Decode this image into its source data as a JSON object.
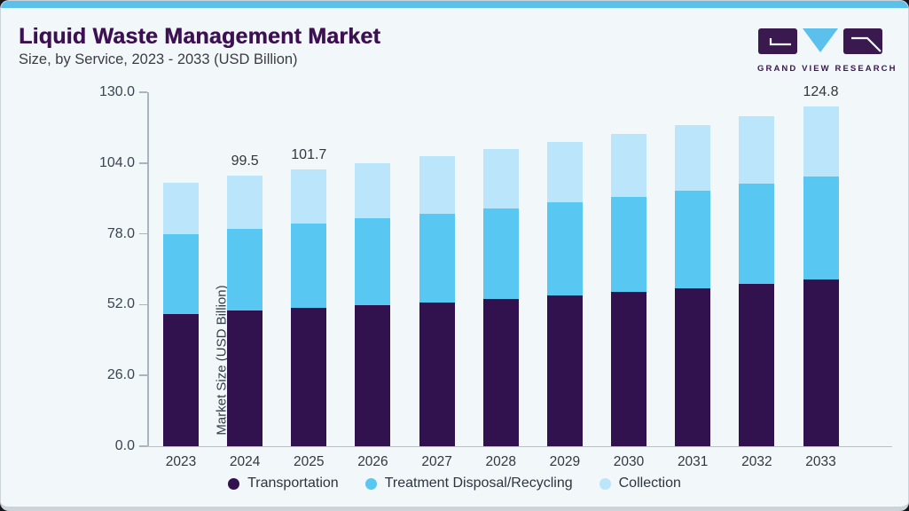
{
  "header": {
    "title": "Liquid Waste Management Market",
    "subtitle": "Size, by Service, 2023 - 2033 (USD Billion)"
  },
  "logo": {
    "text": "GRAND VIEW RESEARCH",
    "purple": "#39194e",
    "blue": "#5bc0ec"
  },
  "theme": {
    "accent_strip": "#5bc0ec",
    "card_background": "#f2f7fa",
    "title_color": "#3c1053",
    "axis_color": "#a9b4be"
  },
  "chart_data": {
    "type": "bar",
    "stacked": true,
    "title": "Liquid Waste Management Market Size, by Service, 2023 - 2033 (USD Billion)",
    "xlabel": "",
    "ylabel": "Market Size (USD Billion)",
    "ylim": [
      0,
      130
    ],
    "yticks": [
      0.0,
      26.0,
      52.0,
      78.0,
      104.0,
      130.0
    ],
    "grid": false,
    "legend_position": "bottom",
    "categories": [
      "2023",
      "2024",
      "2025",
      "2026",
      "2027",
      "2028",
      "2029",
      "2030",
      "2031",
      "2032",
      "2033"
    ],
    "series": [
      {
        "name": "Transportation",
        "color": "#32124e",
        "values": [
          48.6,
          49.8,
          50.8,
          51.8,
          52.8,
          54.0,
          55.3,
          56.7,
          58.1,
          59.6,
          61.1
        ]
      },
      {
        "name": "Treatment Disposal/Recycling",
        "color": "#58c7f2",
        "values": [
          29.4,
          30.1,
          31.1,
          31.9,
          32.6,
          33.4,
          34.2,
          35.0,
          35.9,
          36.8,
          37.8
        ]
      },
      {
        "name": "Collection",
        "color": "#bae5fa",
        "values": [
          18.8,
          19.6,
          19.8,
          20.4,
          21.0,
          21.7,
          22.4,
          23.1,
          23.9,
          24.7,
          25.9
        ]
      }
    ],
    "totals": [
      96.8,
      99.5,
      101.7,
      104.1,
      106.4,
      109.1,
      111.9,
      114.8,
      117.9,
      121.1,
      124.8
    ],
    "bar_value_labels": {
      "2024": "99.5",
      "2025": "101.7",
      "2033": "124.8"
    }
  }
}
